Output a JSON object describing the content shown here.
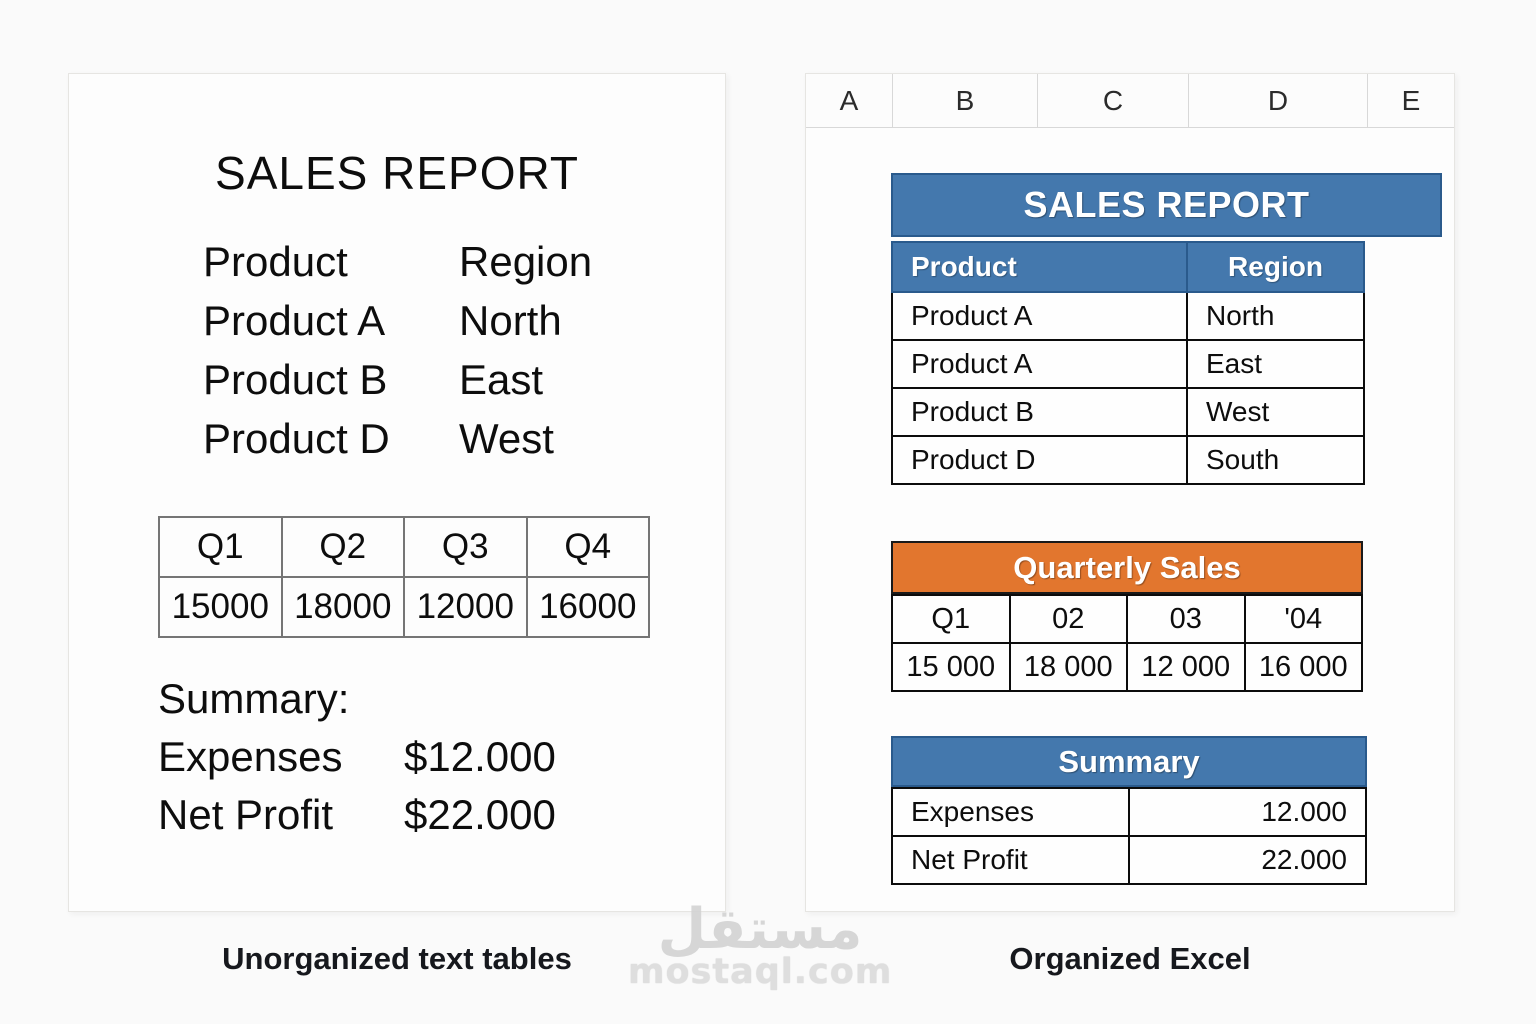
{
  "colors": {
    "page_bg": "#fafafa",
    "blue": "#4478ad",
    "blue_border": "#2a5a8c",
    "orange": "#e2762e"
  },
  "watermark": {
    "arabic": "مستقل",
    "domain": "mostaql.com"
  },
  "left_panel": {
    "caption": "Unorganized text tables",
    "title": "SALES REPORT",
    "product_region": {
      "rows": [
        {
          "product": "Product",
          "region": "Region"
        },
        {
          "product": "Product A",
          "region": "North"
        },
        {
          "product": "Product B",
          "region": "East"
        },
        {
          "product": "Product D",
          "region": "West"
        }
      ]
    },
    "quarter_table": {
      "headers": [
        "Q1",
        "Q2",
        "Q3",
        "Q4"
      ],
      "values": [
        "15000",
        "18000",
        "12000",
        "16000"
      ]
    },
    "summary": {
      "heading": "Summary:",
      "rows": [
        {
          "label": "Expenses",
          "value": "$12.000"
        },
        {
          "label": "Net Profit",
          "value": "$22.000"
        }
      ]
    }
  },
  "right_panel": {
    "caption": "Organized Excel",
    "column_headers": [
      "A",
      "B",
      "C",
      "D",
      "E"
    ],
    "sales_report": {
      "title": "SALES REPORT",
      "column_labels": {
        "product": "Product",
        "region": "Region"
      },
      "rows": [
        {
          "product": "Product A",
          "region": "North"
        },
        {
          "product": "Product A",
          "region": "East"
        },
        {
          "product": "Product B",
          "region": "West"
        },
        {
          "product": "Product D",
          "region": "South"
        }
      ]
    },
    "quarterly_sales": {
      "title": "Quarterly Sales",
      "headers": [
        "Q1",
        "02",
        "03",
        "'04"
      ],
      "values": [
        "15 000",
        "18 000",
        "12 000",
        "16 000"
      ]
    },
    "summary": {
      "title": "Summary",
      "rows": [
        {
          "label": "Expenses",
          "value": "12.000"
        },
        {
          "label": "Net Profit",
          "value": "22.000"
        }
      ]
    }
  }
}
